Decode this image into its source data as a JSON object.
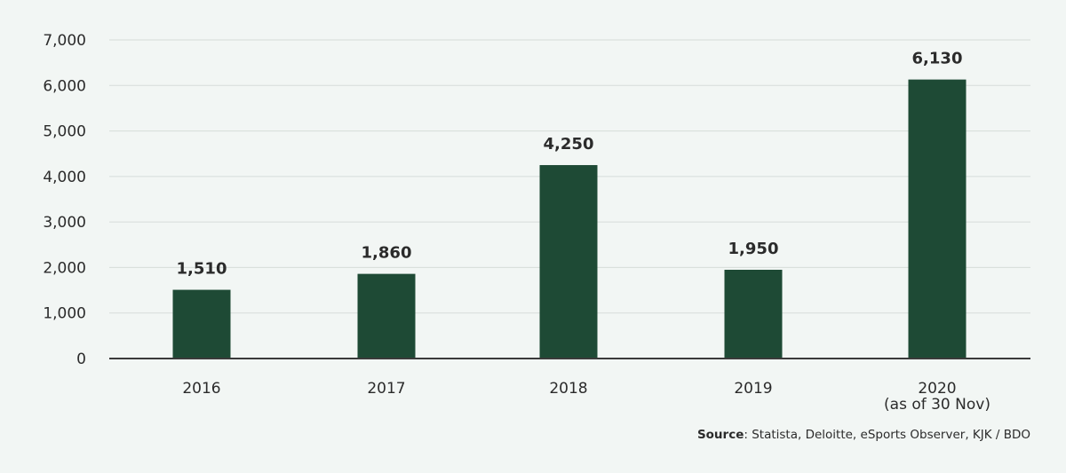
{
  "chart_data": {
    "type": "bar",
    "categories": [
      [
        "2016"
      ],
      [
        "2017"
      ],
      [
        "2018"
      ],
      [
        "2019"
      ],
      [
        "2020",
        "(as of 30 Nov)"
      ]
    ],
    "values": [
      1510,
      1860,
      4250,
      1950,
      6130
    ],
    "data_labels": [
      "1,510",
      "1,860",
      "4,250",
      "1,950",
      "6,130"
    ],
    "y_ticks": [
      0,
      1000,
      2000,
      3000,
      4000,
      5000,
      6000,
      7000
    ],
    "y_tick_labels": [
      "0",
      "1,000",
      "2,000",
      "3,000",
      "4,000",
      "5,000",
      "6,000",
      "7,000"
    ],
    "ylim": [
      0,
      7000
    ],
    "grid": true,
    "bar_color": "#1e4a35",
    "grid_color": "#d6dcd9",
    "axis_color": "#3a3a3a"
  },
  "source": {
    "label": "Source",
    "text": ": Statista, Deloitte, eSports Observer, KJK / BDO"
  }
}
